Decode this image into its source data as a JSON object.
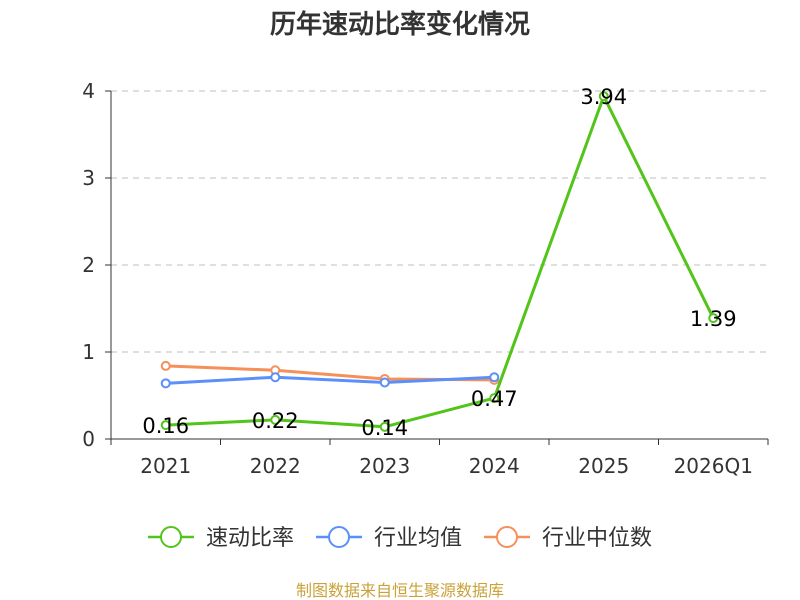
{
  "chart_data": {
    "type": "line",
    "title": "历年速动比率变化情况",
    "categories": [
      "2021",
      "2022",
      "2023",
      "2024",
      "2025",
      "2026Q1"
    ],
    "ylim": [
      0,
      4
    ],
    "yticks": [
      0,
      1,
      2,
      3,
      4
    ],
    "grid": true,
    "legend_position": "bottom",
    "series": [
      {
        "name": "速动比率",
        "color": "#52c41a",
        "values": [
          0.16,
          0.22,
          0.14,
          0.47,
          3.94,
          1.39
        ],
        "show_labels": true
      },
      {
        "name": "行业均值",
        "color": "#5b8ff9",
        "values": [
          0.64,
          0.71,
          0.65,
          0.71,
          null,
          null
        ],
        "show_labels": false
      },
      {
        "name": "行业中位数",
        "color": "#f6905b",
        "values": [
          0.84,
          0.79,
          0.69,
          0.68,
          null,
          null
        ],
        "show_labels": false
      }
    ],
    "source": "制图数据来自恒生聚源数据库"
  }
}
